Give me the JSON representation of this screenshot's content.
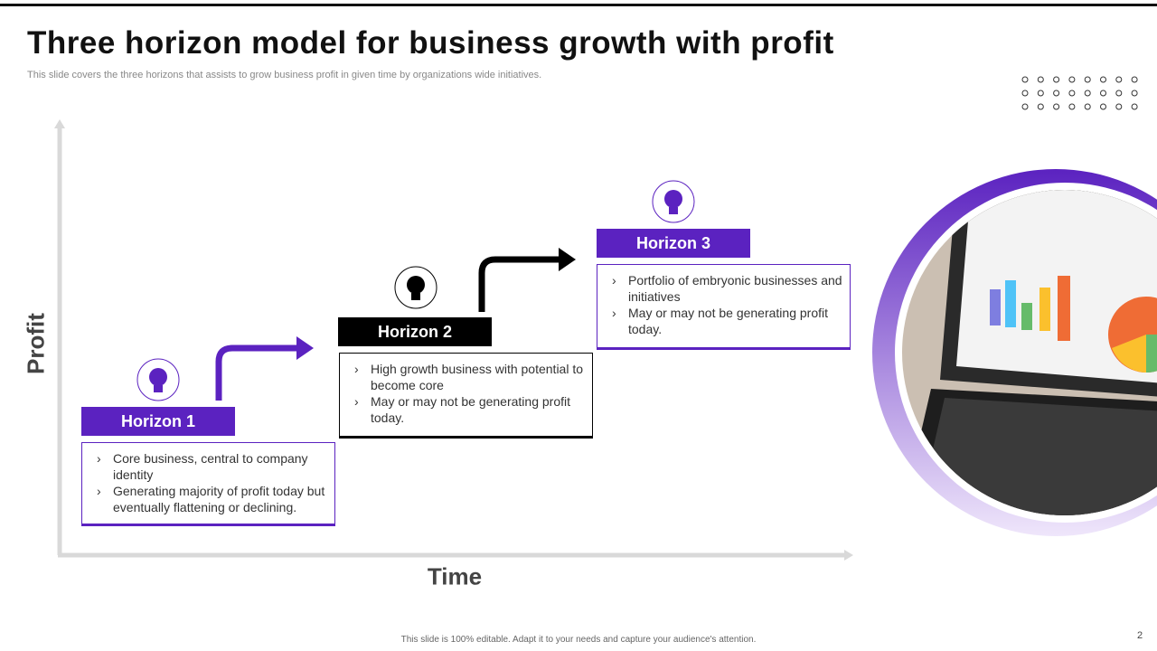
{
  "header": {
    "title": "Three horizon model for business growth with profit",
    "subtitle": "This slide covers the three horizons that assists to grow business profit in given time by organizations wide initiatives."
  },
  "axes": {
    "y_label": "Profit",
    "x_label": "Time"
  },
  "horizons": [
    {
      "label": "Horizon 1",
      "points": [
        "Core business, central to company identity",
        "Generating majority of profit today but eventually flattening or declining."
      ]
    },
    {
      "label": "Horizon 2",
      "points": [
        "High growth business with potential to become core",
        "May or may not be generating profit today."
      ]
    },
    {
      "label": "Horizon 3",
      "points": [
        "Portfolio of embryonic businesses and initiatives",
        "May or may not be generating profit today."
      ]
    }
  ],
  "footer": {
    "note": "This slide is 100% editable. Adapt it to your needs and capture your audience's attention.",
    "page_number": "2"
  }
}
